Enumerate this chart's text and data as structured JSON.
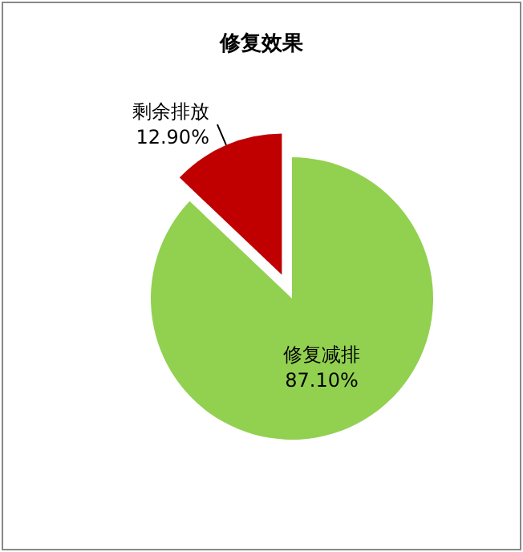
{
  "chart_data": {
    "type": "pie",
    "title": "修复效果",
    "categories": [
      "修复减排",
      "剩余排放"
    ],
    "values": [
      87.1,
      12.9
    ],
    "colors": [
      "#92d050",
      "#c00000"
    ],
    "value_labels": [
      "87.10%",
      "12.90%"
    ],
    "legend": false
  }
}
